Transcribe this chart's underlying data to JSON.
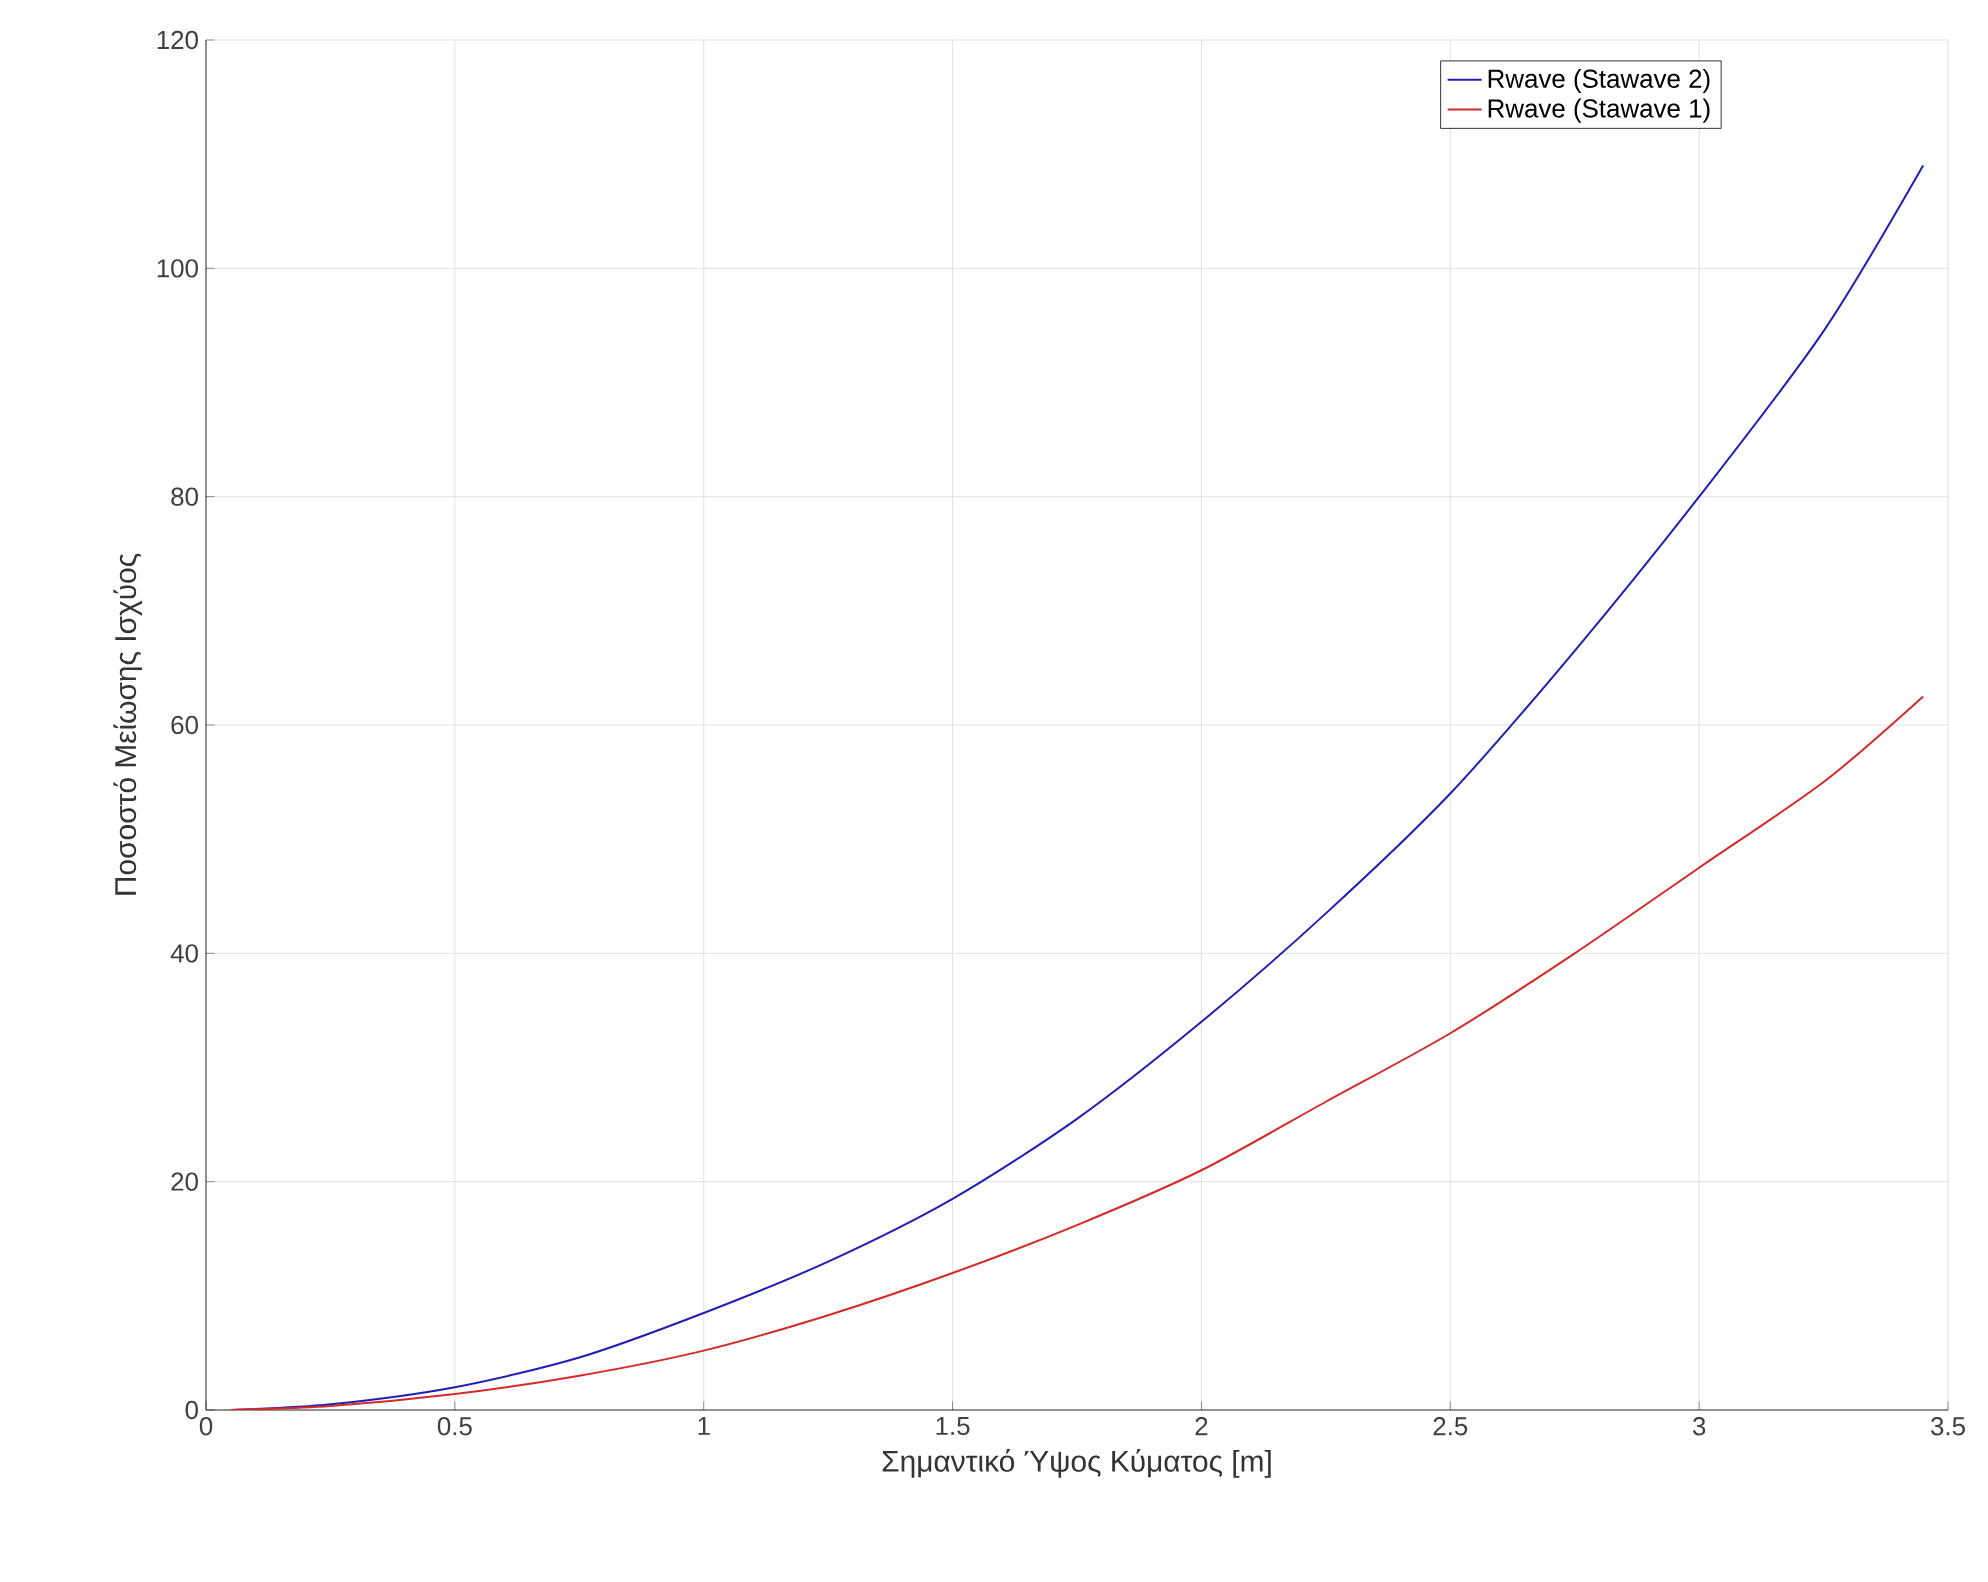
{
  "chart_data": {
    "type": "line",
    "xlabel": "Σημαντικό Ύψος Κύματος [m]",
    "ylabel": "Ποσοστό Μείωσης Ισχύος",
    "x": [
      0.05,
      0.25,
      0.5,
      0.75,
      1,
      1.25,
      1.5,
      1.75,
      2,
      2.25,
      2.5,
      2.75,
      3,
      3.25,
      3.45
    ],
    "series": [
      {
        "name": "Rwave (Stawave 2)",
        "color": "#1f1fb4",
        "values": [
          0,
          0.5,
          2,
          4.6,
          8.5,
          13,
          18.5,
          25.5,
          34,
          43.5,
          54,
          66.5,
          80,
          94.5,
          109
        ]
      },
      {
        "name": "Rwave (Stawave 1)",
        "color": "#d42a2a",
        "values": [
          0,
          0.35,
          1.4,
          3,
          5.2,
          8.3,
          12,
          16.2,
          21,
          27,
          33,
          40,
          47.5,
          55,
          62.5
        ]
      }
    ],
    "xlim": [
      0,
      3.5
    ],
    "ylim": [
      0,
      120
    ],
    "xticks": [
      0,
      0.5,
      1,
      1.5,
      2,
      2.5,
      3,
      3.5
    ],
    "yticks": [
      0,
      20,
      40,
      60,
      80,
      100,
      120
    ],
    "grid": true,
    "legend": "top right",
    "marker": "none",
    "line_style": "solid"
  }
}
